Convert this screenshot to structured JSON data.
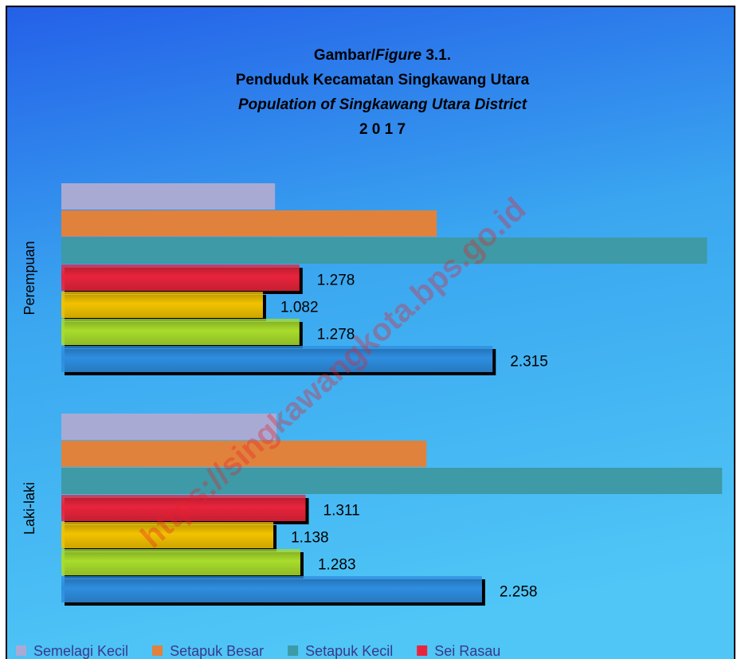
{
  "chart_data": {
    "type": "bar",
    "orientation": "horizontal",
    "title": [
      [
        "Gambar/",
        "Figure",
        " 3.1."
      ],
      "Penduduk Kecamatan Singkawang Utara",
      "Population of Singkawang Utara District",
      "2 0 1 7"
    ],
    "annotation": "https://singkawangkota.bps.go.id",
    "categories": [
      "Perempuan",
      "Laki-laki"
    ],
    "xlim": [
      0,
      3550
    ],
    "series": [
      {
        "name": "Semelagi Kecil",
        "color": "#a8aad4",
        "values": [
          1147,
          1155
        ]
      },
      {
        "name": "Setapuk Besar",
        "color": "#e0823c",
        "values": [
          2015,
          1960
        ]
      },
      {
        "name": "Setapuk Kecil",
        "color": "#3d9aa6",
        "values": [
          3466,
          3547
        ]
      },
      {
        "name": "Sei Rasau",
        "color": "#e8243c",
        "values": [
          1278,
          1311
        ],
        "value_labels": [
          "1.278",
          "1.311"
        ]
      },
      {
        "color": "#f2c200",
        "values": [
          1082,
          1138
        ],
        "value_labels": [
          "1.082",
          "1.138"
        ]
      },
      {
        "color": "#a8dc2c",
        "values": [
          1278,
          1283
        ],
        "value_labels": [
          "1.278",
          "1.283"
        ]
      },
      {
        "color": "#2e8ee0",
        "values": [
          2315,
          2258
        ],
        "value_labels": [
          "2.315",
          "2.258"
        ]
      }
    ]
  }
}
